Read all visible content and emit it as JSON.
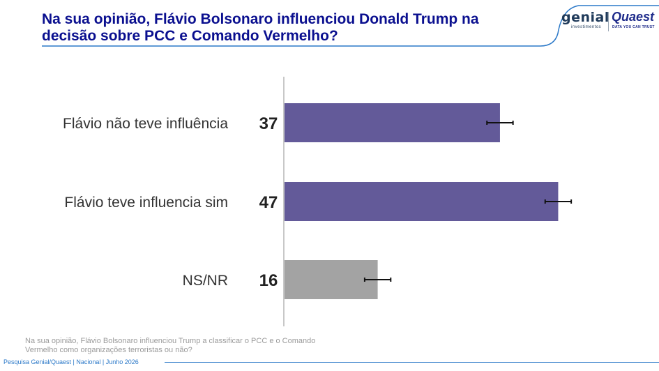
{
  "header": {
    "title": "Na sua opinião, Flávio Bolsonaro influenciou Donald Trump na decisão sobre PCC e Comando Vermelho?"
  },
  "logos": {
    "genial": "genial",
    "genial_sub": "investimentos",
    "quaest": "Quaest",
    "quaest_sub": "DATA YOU CAN TRUST"
  },
  "chart_data": {
    "type": "bar",
    "orientation": "horizontal",
    "categories": [
      "Flávio não teve influência",
      "Flávio teve influencia sim",
      "NS/NR"
    ],
    "values": [
      37,
      47,
      16
    ],
    "error_margin": 2,
    "colors": [
      "#635a99",
      "#635a99",
      "#a3a3a3"
    ],
    "xlim": [
      0,
      55
    ],
    "grid": false,
    "title": "",
    "xlabel": "",
    "ylabel": ""
  },
  "footnote": "Na sua opinião, Flávio Bolsonaro influenciou Trump a classificar o PCC e o Comando Vermelho como organizações terroristas ou não?",
  "source": "Pesquisa Genial/Quaest | Nacional | Junho 2026",
  "colors": {
    "title": "#0a0f8f",
    "accent_line": "#2a78c8",
    "bar_primary": "#635a99",
    "bar_neutral": "#a3a3a3"
  }
}
